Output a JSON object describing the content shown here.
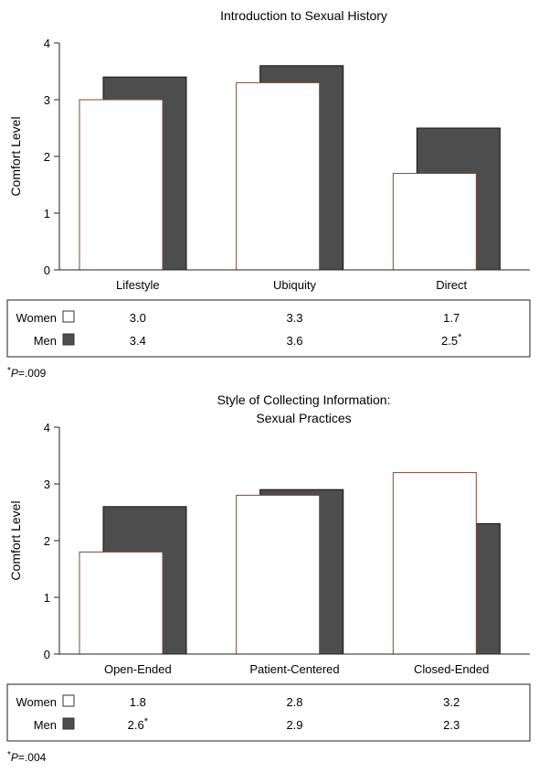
{
  "chart_data": [
    {
      "type": "bar",
      "title": "Introduction to Sexual History",
      "ylabel": "Comfort Level",
      "ylim": [
        0,
        4
      ],
      "yticks": [
        "0",
        "1",
        "2",
        "3",
        "4"
      ],
      "categories": [
        "Lifestyle",
        "Ubiquity",
        "Direct"
      ],
      "series": [
        {
          "name": "Women",
          "values": [
            3.0,
            3.3,
            1.7
          ],
          "labels": [
            "3.0",
            "3.3",
            "1.7"
          ],
          "color": "#ffffff"
        },
        {
          "name": "Men",
          "values": [
            3.4,
            3.6,
            2.5
          ],
          "labels": [
            "3.4",
            "3.6",
            "2.5*"
          ],
          "color": "#4d4d4d"
        }
      ],
      "footnote": "*P=.009"
    },
    {
      "type": "bar",
      "title": "Style of Collecting Information:",
      "subtitle": "Sexual Practices",
      "ylabel": "Comfort Level",
      "ylim": [
        0,
        4
      ],
      "yticks": [
        "0",
        "1",
        "2",
        "3",
        "4"
      ],
      "categories": [
        "Open-Ended",
        "Patient-Centered",
        "Closed-Ended"
      ],
      "series": [
        {
          "name": "Women",
          "values": [
            1.8,
            2.8,
            3.2
          ],
          "labels": [
            "1.8",
            "2.8",
            "3.2"
          ],
          "color": "#ffffff"
        },
        {
          "name": "Men",
          "values": [
            2.6,
            2.9,
            2.3
          ],
          "labels": [
            "2.6*",
            "2.9",
            "2.3"
          ],
          "color": "#4d4d4d"
        }
      ],
      "footnote": "*P=.004"
    }
  ]
}
